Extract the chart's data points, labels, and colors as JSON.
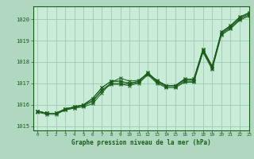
{
  "bg_color": "#b0d8c0",
  "plot_bg": "#c8ecd8",
  "grid_color": "#a0c8b0",
  "line_color": "#1a5c1a",
  "xlabel": "Graphe pression niveau de la mer (hPa)",
  "xlim": [
    -0.5,
    23
  ],
  "ylim": [
    1014.8,
    1020.6
  ],
  "yticks": [
    1015,
    1016,
    1017,
    1018,
    1019,
    1020
  ],
  "xticks": [
    0,
    1,
    2,
    3,
    4,
    5,
    6,
    7,
    8,
    9,
    10,
    11,
    12,
    13,
    14,
    15,
    16,
    17,
    18,
    19,
    20,
    21,
    22,
    23
  ],
  "series": [
    [
      1015.7,
      1015.6,
      1015.6,
      1015.8,
      1015.9,
      1016.0,
      1016.3,
      1016.8,
      1017.1,
      1017.1,
      1017.0,
      1017.1,
      1017.5,
      1017.1,
      1016.9,
      1016.9,
      1017.2,
      1017.2,
      1018.6,
      1017.8,
      1019.4,
      1019.7,
      1020.1,
      1020.3
    ],
    [
      1015.7,
      1015.6,
      1015.6,
      1015.8,
      1015.9,
      1016.0,
      1016.3,
      1016.8,
      1017.1,
      1017.1,
      1017.0,
      1017.1,
      1017.5,
      1017.1,
      1016.9,
      1016.9,
      1017.2,
      1017.2,
      1018.6,
      1017.8,
      1019.4,
      1019.7,
      1020.1,
      1020.3
    ],
    [
      1015.7,
      1015.6,
      1015.6,
      1015.8,
      1015.9,
      1016.0,
      1016.2,
      1016.7,
      1017.0,
      1017.0,
      1016.95,
      1017.05,
      1017.45,
      1017.05,
      1016.85,
      1016.85,
      1017.1,
      1017.1,
      1018.5,
      1017.7,
      1019.3,
      1019.6,
      1020.0,
      1020.2
    ],
    [
      1015.65,
      1015.55,
      1015.55,
      1015.75,
      1015.85,
      1015.95,
      1016.15,
      1016.65,
      1016.95,
      1016.95,
      1016.9,
      1017.0,
      1017.4,
      1017.0,
      1016.8,
      1016.8,
      1017.05,
      1017.05,
      1018.45,
      1017.65,
      1019.25,
      1019.55,
      1019.95,
      1020.15
    ]
  ],
  "series2": [
    [
      1015.7,
      1015.6,
      1015.6,
      1015.75,
      1015.85,
      1015.9,
      1016.05,
      1016.55,
      1017.05,
      1017.25,
      1017.1,
      1017.15,
      1017.45,
      1017.15,
      1016.9,
      1016.9,
      1017.15,
      1017.15,
      1018.55,
      1017.75,
      1019.35,
      1019.65,
      1020.05,
      1020.25
    ]
  ]
}
